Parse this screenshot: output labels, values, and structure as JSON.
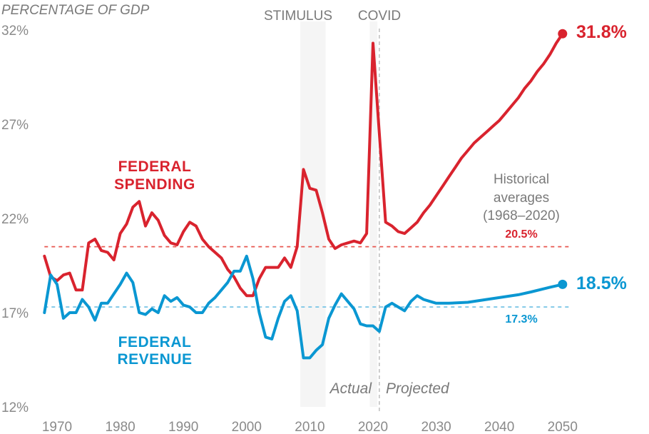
{
  "chart_data": {
    "type": "line",
    "ylabel": "PERCENTAGE OF GDP",
    "ylim": [
      12,
      32
    ],
    "xlim": [
      1968,
      2050
    ],
    "y_ticks": [
      "12%",
      "17%",
      "22%",
      "27%",
      "32%"
    ],
    "y_tick_values": [
      12,
      17,
      22,
      27,
      32
    ],
    "x_ticks": [
      "1970",
      "1980",
      "1990",
      "2000",
      "2010",
      "2020",
      "2030",
      "2040",
      "2050"
    ],
    "x_tick_values": [
      1970,
      1980,
      1990,
      2000,
      2010,
      2020,
      2030,
      2040,
      2050
    ],
    "grid": false,
    "annotations": {
      "stimulus": {
        "label": "STIMULUS",
        "range": [
          2008.5,
          2012.5
        ]
      },
      "covid": {
        "label": "COVID",
        "range": [
          2019.5,
          2020.7
        ]
      },
      "split_year": 2021,
      "actual_label": "Actual",
      "projected_label": "Projected",
      "historical_label": [
        "Historical",
        "averages",
        "(1968–2020)"
      ]
    },
    "series": [
      {
        "name": "FEDERAL SPENDING",
        "label_lines": [
          "FEDERAL",
          "SPENDING"
        ],
        "color": "#d9232e",
        "end_label": "31.8%",
        "average": 20.5,
        "average_label": "20.5%",
        "average_color": "#e8574f",
        "x": [
          1968,
          1969,
          1970,
          1971,
          1972,
          1973,
          1974,
          1975,
          1976,
          1977,
          1978,
          1979,
          1980,
          1981,
          1982,
          1983,
          1984,
          1985,
          1986,
          1987,
          1988,
          1989,
          1990,
          1991,
          1992,
          1993,
          1994,
          1995,
          1996,
          1997,
          1998,
          1999,
          2000,
          2001,
          2002,
          2003,
          2004,
          2005,
          2006,
          2007,
          2008,
          2009,
          2010,
          2011,
          2012,
          2013,
          2014,
          2015,
          2016,
          2017,
          2018,
          2019,
          2020,
          2021,
          2022,
          2023,
          2024,
          2025,
          2026,
          2027,
          2028,
          2029,
          2030,
          2031,
          2032,
          2033,
          2034,
          2035,
          2036,
          2037,
          2038,
          2039,
          2040,
          2041,
          2042,
          2043,
          2044,
          2045,
          2046,
          2047,
          2048,
          2049,
          2050
        ],
        "values": [
          20.0,
          18.9,
          18.7,
          19.0,
          19.1,
          18.2,
          18.2,
          20.7,
          20.9,
          20.3,
          20.2,
          19.8,
          21.2,
          21.7,
          22.6,
          22.9,
          21.6,
          22.3,
          21.9,
          21.1,
          20.7,
          20.6,
          21.3,
          21.8,
          21.6,
          20.9,
          20.5,
          20.2,
          19.9,
          19.3,
          18.9,
          18.3,
          17.9,
          17.9,
          18.8,
          19.4,
          19.4,
          19.4,
          19.9,
          19.4,
          20.5,
          24.6,
          23.6,
          23.5,
          22.3,
          20.9,
          20.4,
          20.6,
          20.7,
          20.8,
          20.7,
          21.2,
          31.3,
          26.5,
          21.8,
          21.6,
          21.3,
          21.2,
          21.5,
          21.8,
          22.3,
          22.7,
          23.2,
          23.7,
          24.2,
          24.7,
          25.2,
          25.6,
          26.0,
          26.3,
          26.6,
          26.9,
          27.2,
          27.6,
          28.0,
          28.4,
          28.9,
          29.3,
          29.8,
          30.2,
          30.7,
          31.3,
          31.8
        ]
      },
      {
        "name": "FEDERAL REVENUE",
        "label_lines": [
          "FEDERAL",
          "REVENUE"
        ],
        "color": "#0a97d2",
        "end_label": "18.5%",
        "average": 17.3,
        "average_label": "17.3%",
        "average_color": "#7fc7e6",
        "x": [
          1968,
          1969,
          1970,
          1971,
          1972,
          1973,
          1974,
          1975,
          1976,
          1977,
          1978,
          1979,
          1980,
          1981,
          1982,
          1983,
          1984,
          1985,
          1986,
          1987,
          1988,
          1989,
          1990,
          1991,
          1992,
          1993,
          1994,
          1995,
          1996,
          1997,
          1998,
          1999,
          2000,
          2001,
          2002,
          2003,
          2004,
          2005,
          2006,
          2007,
          2008,
          2009,
          2010,
          2011,
          2012,
          2013,
          2014,
          2015,
          2016,
          2017,
          2018,
          2019,
          2020,
          2021,
          2022,
          2023,
          2024,
          2025,
          2026,
          2027,
          2028,
          2029,
          2030,
          2032,
          2035,
          2038,
          2040,
          2043,
          2045,
          2048,
          2050
        ],
        "values": [
          17.0,
          19.0,
          18.5,
          16.7,
          17.0,
          17.0,
          17.7,
          17.3,
          16.6,
          17.5,
          17.5,
          18.0,
          18.5,
          19.1,
          18.6,
          17.0,
          16.9,
          17.2,
          17.0,
          17.9,
          17.6,
          17.8,
          17.4,
          17.3,
          17.0,
          17.0,
          17.5,
          17.8,
          18.2,
          18.6,
          19.2,
          19.2,
          20.0,
          18.8,
          17.0,
          15.7,
          15.6,
          16.7,
          17.6,
          17.9,
          17.1,
          14.6,
          14.6,
          15.0,
          15.3,
          16.7,
          17.4,
          18.0,
          17.6,
          17.2,
          16.4,
          16.3,
          16.3,
          16.0,
          17.3,
          17.5,
          17.3,
          17.1,
          17.6,
          17.9,
          17.7,
          17.6,
          17.5,
          17.5,
          17.55,
          17.7,
          17.8,
          17.95,
          18.1,
          18.35,
          18.5
        ]
      }
    ]
  }
}
